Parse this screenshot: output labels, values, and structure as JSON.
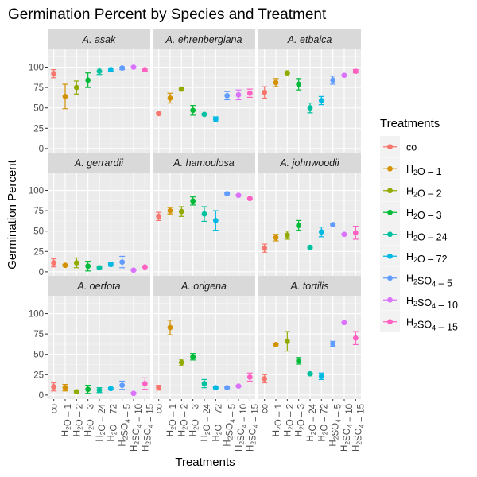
{
  "chart_data": {
    "type": "scatter",
    "title": "Germination Percent by Species and Treatment",
    "xlabel": "Treatments",
    "ylabel": "Germination Percent",
    "ylim": [
      -5,
      122
    ],
    "y_ticks": [
      0,
      25,
      50,
      75,
      100
    ],
    "grid": true,
    "facet_layout": "3x3",
    "legend_position": "right",
    "legend_title": "Treatments",
    "treatments": [
      {
        "key": "co",
        "base": "co",
        "sub": "",
        "suffix": "",
        "color": "#F8766D"
      },
      {
        "key": "H2O-1",
        "base": "H",
        "sub": "2",
        "suffix": "O – 1",
        "color": "#D39200"
      },
      {
        "key": "H2O-2",
        "base": "H",
        "sub": "2",
        "suffix": "O – 2",
        "color": "#93AA00"
      },
      {
        "key": "H2O-3",
        "base": "H",
        "sub": "2",
        "suffix": "O – 3",
        "color": "#00BA38"
      },
      {
        "key": "H2O-24",
        "base": "H",
        "sub": "2",
        "suffix": "O – 24",
        "color": "#00C19F"
      },
      {
        "key": "H2O-72",
        "base": "H",
        "sub": "2",
        "suffix": "O – 72",
        "color": "#00B9E3"
      },
      {
        "key": "H2SO4-5",
        "base": "H",
        "sub": "2",
        "suffix": "SO",
        "sub2": "4",
        "suffix2": " – 5",
        "color": "#619CFF"
      },
      {
        "key": "H2SO4-10",
        "base": "H",
        "sub": "2",
        "suffix": "SO",
        "sub2": "4",
        "suffix2": " – 10",
        "color": "#DB72FB"
      },
      {
        "key": "H2SO4-15",
        "base": "H",
        "sub": "2",
        "suffix": "SO",
        "sub2": "4",
        "suffix2": " – 15",
        "color": "#FF61C3"
      }
    ],
    "panels": [
      {
        "species": "A. asak",
        "means": [
          92,
          64,
          75,
          84,
          95,
          97,
          99,
          100,
          97
        ],
        "lo": [
          87,
          49,
          67,
          75,
          91,
          95,
          97,
          99,
          95
        ],
        "hi": [
          97,
          79,
          83,
          93,
          99,
          99,
          100,
          101,
          99
        ]
      },
      {
        "species": "A. ehrenbergiana",
        "means": [
          43,
          62,
          73,
          47,
          42,
          36,
          65,
          66,
          68
        ],
        "lo": [
          42,
          56,
          72,
          41,
          41,
          33,
          60,
          60,
          63
        ],
        "hi": [
          44,
          68,
          74,
          53,
          43,
          39,
          70,
          72,
          73
        ]
      },
      {
        "species": "A. etbaica",
        "means": [
          69,
          81,
          93,
          79,
          50,
          59,
          84,
          90,
          95
        ],
        "lo": [
          62,
          76,
          92,
          72,
          44,
          54,
          79,
          89,
          93
        ],
        "hi": [
          76,
          86,
          94,
          86,
          56,
          64,
          89,
          91,
          97
        ]
      },
      {
        "species": "A. gerrardii",
        "means": [
          11,
          8,
          11,
          7,
          5,
          9,
          12,
          2,
          6
        ],
        "lo": [
          6,
          7,
          5,
          1,
          4,
          7,
          5,
          1,
          5
        ],
        "hi": [
          16,
          9,
          17,
          13,
          6,
          11,
          19,
          3,
          7
        ]
      },
      {
        "species": "A. hamoulosa",
        "means": [
          68,
          75,
          74,
          87,
          71,
          63,
          96,
          94,
          90
        ],
        "lo": [
          63,
          71,
          68,
          82,
          62,
          51,
          95,
          93,
          89
        ],
        "hi": [
          73,
          79,
          80,
          92,
          80,
          75,
          97,
          95,
          91
        ]
      },
      {
        "species": "A. johnwoodii",
        "means": [
          29,
          42,
          45,
          57,
          30,
          49,
          58,
          46,
          48
        ],
        "lo": [
          24,
          38,
          40,
          51,
          29,
          43,
          57,
          45,
          40
        ],
        "hi": [
          34,
          46,
          50,
          63,
          31,
          55,
          59,
          47,
          56
        ]
      },
      {
        "species": "A. oerfota",
        "means": [
          10,
          9,
          4,
          7,
          6,
          8,
          12,
          2,
          14
        ],
        "lo": [
          5,
          5,
          3,
          2,
          3,
          7,
          7,
          1,
          7
        ],
        "hi": [
          15,
          13,
          5,
          12,
          9,
          9,
          17,
          3,
          21
        ]
      },
      {
        "species": "A. origena",
        "means": [
          9,
          83,
          40,
          47,
          14,
          9,
          9,
          11,
          22
        ],
        "lo": [
          6,
          74,
          36,
          43,
          9,
          8,
          8,
          10,
          17
        ],
        "hi": [
          12,
          92,
          44,
          51,
          19,
          10,
          10,
          12,
          27
        ]
      },
      {
        "species": "A. tortilis",
        "means": [
          20,
          62,
          66,
          42,
          26,
          23,
          63,
          89,
          70
        ],
        "lo": [
          15,
          61,
          54,
          38,
          25,
          19,
          60,
          88,
          62
        ],
        "hi": [
          25,
          63,
          78,
          46,
          27,
          27,
          66,
          90,
          78
        ]
      }
    ]
  }
}
